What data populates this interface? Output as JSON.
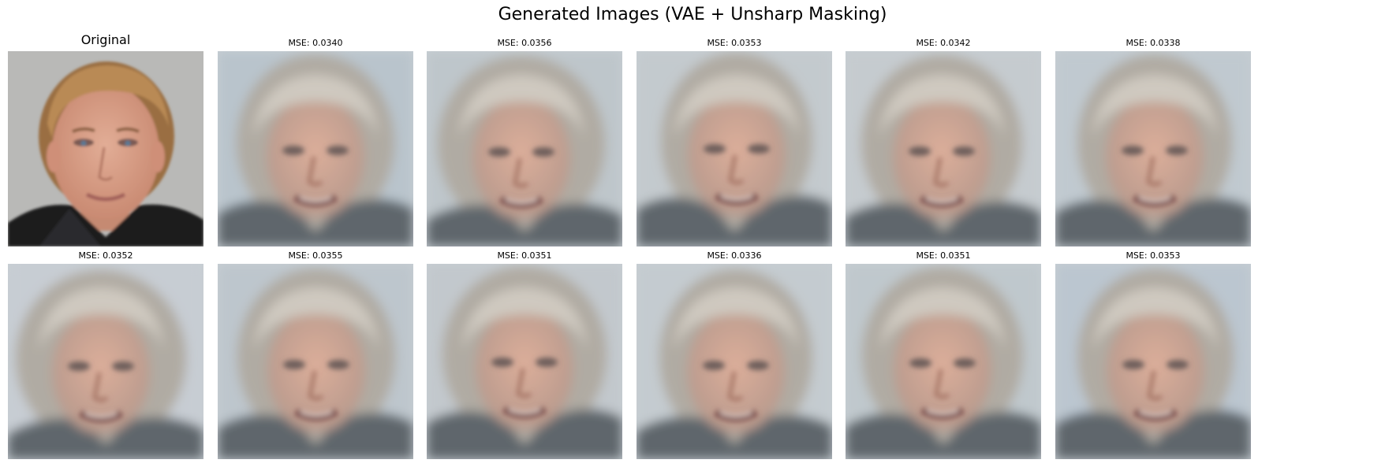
{
  "figure": {
    "title": "Generated Images (VAE + Unsharp Masking)"
  },
  "rows": [
    [
      {
        "caption": "Original",
        "kind": "original",
        "image": "photo of a man with short sandy blond hair and a black jacket on a gray background"
      },
      {
        "caption": "MSE: 0.0340",
        "kind": "generated",
        "image": "blurry reconstructed face with light gray hair on pale blue background"
      },
      {
        "caption": "MSE: 0.0356",
        "kind": "generated",
        "image": "blurry reconstructed face with light gray hair on pale blue background"
      },
      {
        "caption": "MSE: 0.0353",
        "kind": "generated",
        "image": "blurry reconstructed face with light gray hair on pale blue background"
      },
      {
        "caption": "MSE: 0.0342",
        "kind": "generated",
        "image": "blurry reconstructed face with light gray hair on pale blue background"
      },
      {
        "caption": "MSE: 0.0338",
        "kind": "generated",
        "image": "blurry reconstructed face with light gray hair on pale blue background"
      }
    ],
    [
      {
        "caption": "MSE: 0.0352",
        "kind": "generated",
        "image": "blurry reconstructed face with light gray hair on pale blue background"
      },
      {
        "caption": "MSE: 0.0355",
        "kind": "generated",
        "image": "blurry reconstructed face with light gray hair on pale blue background"
      },
      {
        "caption": "MSE: 0.0351",
        "kind": "generated",
        "image": "blurry reconstructed face with light gray hair on pale blue background"
      },
      {
        "caption": "MSE: 0.0336",
        "kind": "generated",
        "image": "blurry reconstructed face with light gray hair on pale blue background"
      },
      {
        "caption": "MSE: 0.0351",
        "kind": "generated",
        "image": "blurry reconstructed face with light gray hair on pale blue background"
      },
      {
        "caption": "MSE: 0.0353",
        "kind": "generated",
        "image": "blurry reconstructed face with light gray hair on pale blue background"
      }
    ]
  ],
  "colors": {
    "original_bg": "#b9b9b7",
    "original_hair": "#b98a55",
    "original_skin": "#d9a088",
    "original_jacket": "#1c1c1e",
    "generated_bg": "#c7ced3",
    "generated_hair": "#b0aba3",
    "generated_skin": "#caa595",
    "generated_clothing": "#5e666c"
  }
}
